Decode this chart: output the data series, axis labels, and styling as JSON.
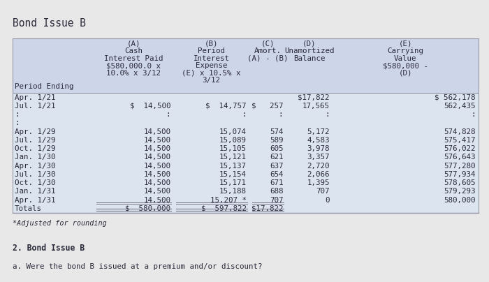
{
  "title": "Bond Issue B",
  "footer": "*Adjusted for rounding",
  "footer2": "2. Bond Issue B",
  "footer3": "a. Were the bond B issued at a premium and/or discount?",
  "header_lines": [
    [
      "",
      "(A)",
      "(B)",
      "",
      "",
      "(E)"
    ],
    [
      "",
      "Cash",
      "Period",
      "(C)",
      "(D)",
      "Carrying"
    ],
    [
      "",
      "Interest Paid",
      "Interest",
      "Amort.",
      "Unamortized",
      "Value"
    ],
    [
      "",
      "$580,000.0 x",
      "Expense",
      "(A) - (B)",
      "Balance",
      "$580,000 -"
    ],
    [
      "Period Ending",
      "10.0% x 3/12",
      "(E) x 10.5% x",
      "",
      "",
      "(D)"
    ],
    [
      "",
      "",
      "3/12",
      "",
      "",
      ""
    ]
  ],
  "header_col0_lines": [
    "",
    "",
    "",
    "",
    "Period Ending",
    ""
  ],
  "col_headers": [
    "Period Ending",
    "(A)\nCash\nInterest Paid\n$580,000.0 x\n10.0% x 3/12",
    "(B)\nPeriod\nInterest\nExpense\n(E) x 10.5% x\n3/12",
    "(C)\nAmort.\n(A) - (B)",
    "(D)\nUnamortized\nBalance",
    "(E)\nCarrying\nValue\n$580,000 -\n(D)"
  ],
  "rows": [
    [
      "Apr. 1/21",
      "",
      "",
      "",
      "$17,822",
      "$ 562,178"
    ],
    [
      "Jul. 1/21",
      "$  14,500",
      "$  14,757",
      "$   257",
      "17,565",
      "562,435"
    ],
    [
      ":",
      ":",
      ":",
      ":",
      ":",
      ":"
    ],
    [
      ":",
      "",
      "",
      "",
      "",
      ""
    ],
    [
      "Apr. 1/29",
      "14,500",
      "15,074",
      "574",
      "5,172",
      "574,828"
    ],
    [
      "Jul. 1/29",
      "14,500",
      "15,089",
      "589",
      "4,583",
      "575,417"
    ],
    [
      "Oct. 1/29",
      "14,500",
      "15,105",
      "605",
      "3,978",
      "576,022"
    ],
    [
      "Jan. 1/30",
      "14,500",
      "15,121",
      "621",
      "3,357",
      "576,643"
    ],
    [
      "Apr. 1/30",
      "14,500",
      "15,137",
      "637",
      "2,720",
      "577,280"
    ],
    [
      "Jul. 1/30",
      "14,500",
      "15,154",
      "654",
      "2,066",
      "577,934"
    ],
    [
      "Oct. 1/30",
      "14,500",
      "15,171",
      "671",
      "1,395",
      "578,605"
    ],
    [
      "Jan. 1/31",
      "14,500",
      "15,188",
      "688",
      "707",
      "579,293"
    ],
    [
      "Apr. 1/31",
      "14,500",
      "15,207 *",
      "707",
      "0",
      "580,000"
    ],
    [
      "Totals",
      "$  580,000",
      "$  597,822",
      "$17,822",
      "",
      ""
    ]
  ],
  "table_bg": "#cdd5e8",
  "data_bg": "#dce4f0",
  "outer_bg": "#e8e8e8",
  "text_color": "#2a2a3a",
  "title_fontsize": 10.5,
  "body_fontsize": 7.8
}
